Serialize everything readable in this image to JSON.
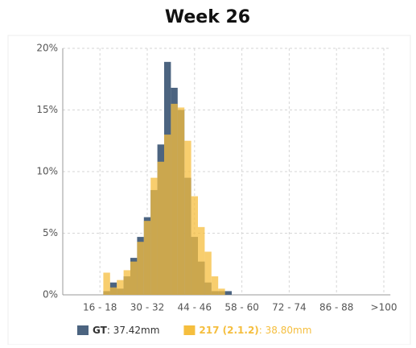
{
  "chart_data": {
    "type": "bar",
    "title": "Week 26",
    "categories": [
      null,
      null,
      null,
      null,
      null,
      "16 - 18",
      null,
      null,
      null,
      null,
      null,
      null,
      "30 - 32",
      null,
      null,
      null,
      null,
      null,
      null,
      "44 - 46",
      null,
      null,
      null,
      null,
      null,
      null,
      "58 - 60",
      null,
      null,
      null,
      null,
      null,
      null,
      "72 - 74",
      null,
      null,
      null,
      null,
      null,
      null,
      "86 - 88",
      null,
      null,
      null,
      null,
      null,
      null,
      ">100"
    ],
    "series": [
      {
        "name": "GT",
        "legend_label": ": 37.42mm",
        "color": "#4c6480",
        "values": [
          0,
          0,
          0,
          0,
          0,
          0,
          0.3,
          1.0,
          0.5,
          1.5,
          3.0,
          4.7,
          6.3,
          8.5,
          12.2,
          18.9,
          16.8,
          15.0,
          9.5,
          4.7,
          2.7,
          1.0,
          0.3,
          0.3,
          0.3,
          0,
          0,
          0,
          0,
          0,
          0,
          0,
          0,
          0,
          0,
          0,
          0,
          0,
          0,
          0,
          0,
          0,
          0,
          0,
          0,
          0,
          0,
          0
        ]
      },
      {
        "name": "217 (2.1.2)",
        "legend_label": ": 38.80mm",
        "color": "#f5be3e",
        "values": [
          0,
          0,
          0,
          0,
          0,
          0,
          1.8,
          0.6,
          1.2,
          2.0,
          2.7,
          4.3,
          6.0,
          9.5,
          10.8,
          13.0,
          15.5,
          15.2,
          12.5,
          8.0,
          5.5,
          3.5,
          1.5,
          0.5,
          0,
          0,
          0,
          0,
          0,
          0,
          0,
          0,
          0,
          0,
          0,
          0,
          0,
          0,
          0,
          0,
          0,
          0,
          0,
          0,
          0,
          0,
          0,
          0
        ]
      }
    ],
    "ylim": [
      0,
      20
    ],
    "yticks": [
      {
        "value": 0,
        "label": "0%"
      },
      {
        "value": 5,
        "label": "5%"
      },
      {
        "value": 10,
        "label": "10%"
      },
      {
        "value": 15,
        "label": "15%"
      },
      {
        "value": 20,
        "label": "20%"
      }
    ],
    "grid": true
  }
}
